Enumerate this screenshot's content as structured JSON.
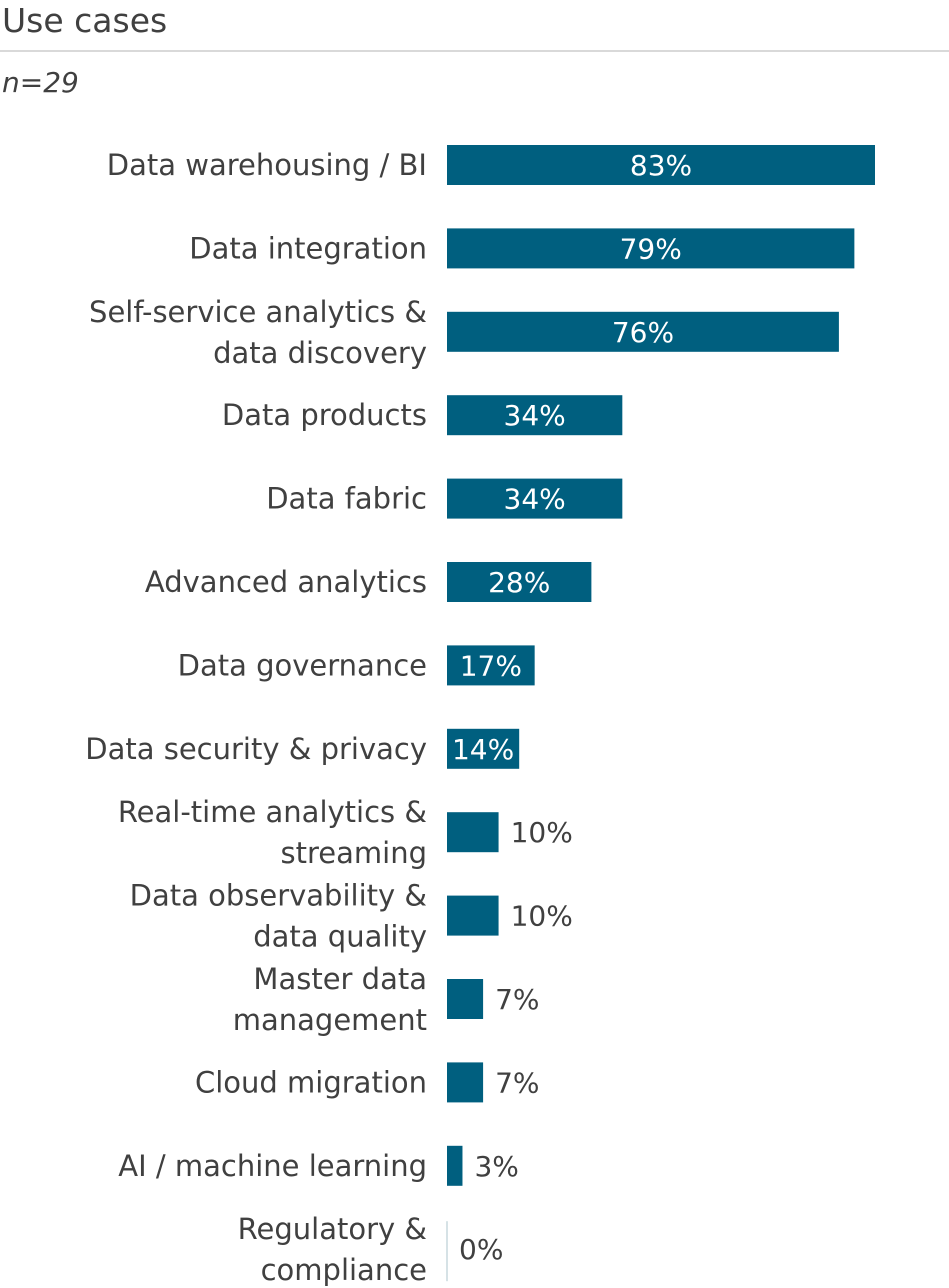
{
  "title": "Use cases",
  "subtitle": "n=29",
  "chart_data": {
    "type": "bar",
    "orientation": "horizontal",
    "title": "Use cases",
    "subtitle": "n=29",
    "unit": "%",
    "categories": [
      "Data warehousing / BI",
      "Data integration",
      "Self-service analytics &\ndata discovery",
      "Data products",
      "Data fabric",
      "Advanced analytics",
      "Data governance",
      "Data security & privacy",
      "Real-time analytics &\nstreaming",
      "Data observability &\ndata quality",
      "Master data\nmanagement",
      "Cloud migration",
      "AI / machine learning",
      "Regulatory &\ncompliance"
    ],
    "values": [
      83,
      79,
      76,
      34,
      34,
      28,
      17,
      14,
      10,
      10,
      7,
      7,
      3,
      0
    ],
    "value_labels": [
      "83%",
      "79%",
      "76%",
      "34%",
      "34%",
      "28%",
      "17%",
      "14%",
      "10%",
      "10%",
      "7%",
      "7%",
      "3%",
      "0%"
    ],
    "xlim": [
      0,
      83
    ],
    "grid": false,
    "bar_color": "#005f7f"
  }
}
